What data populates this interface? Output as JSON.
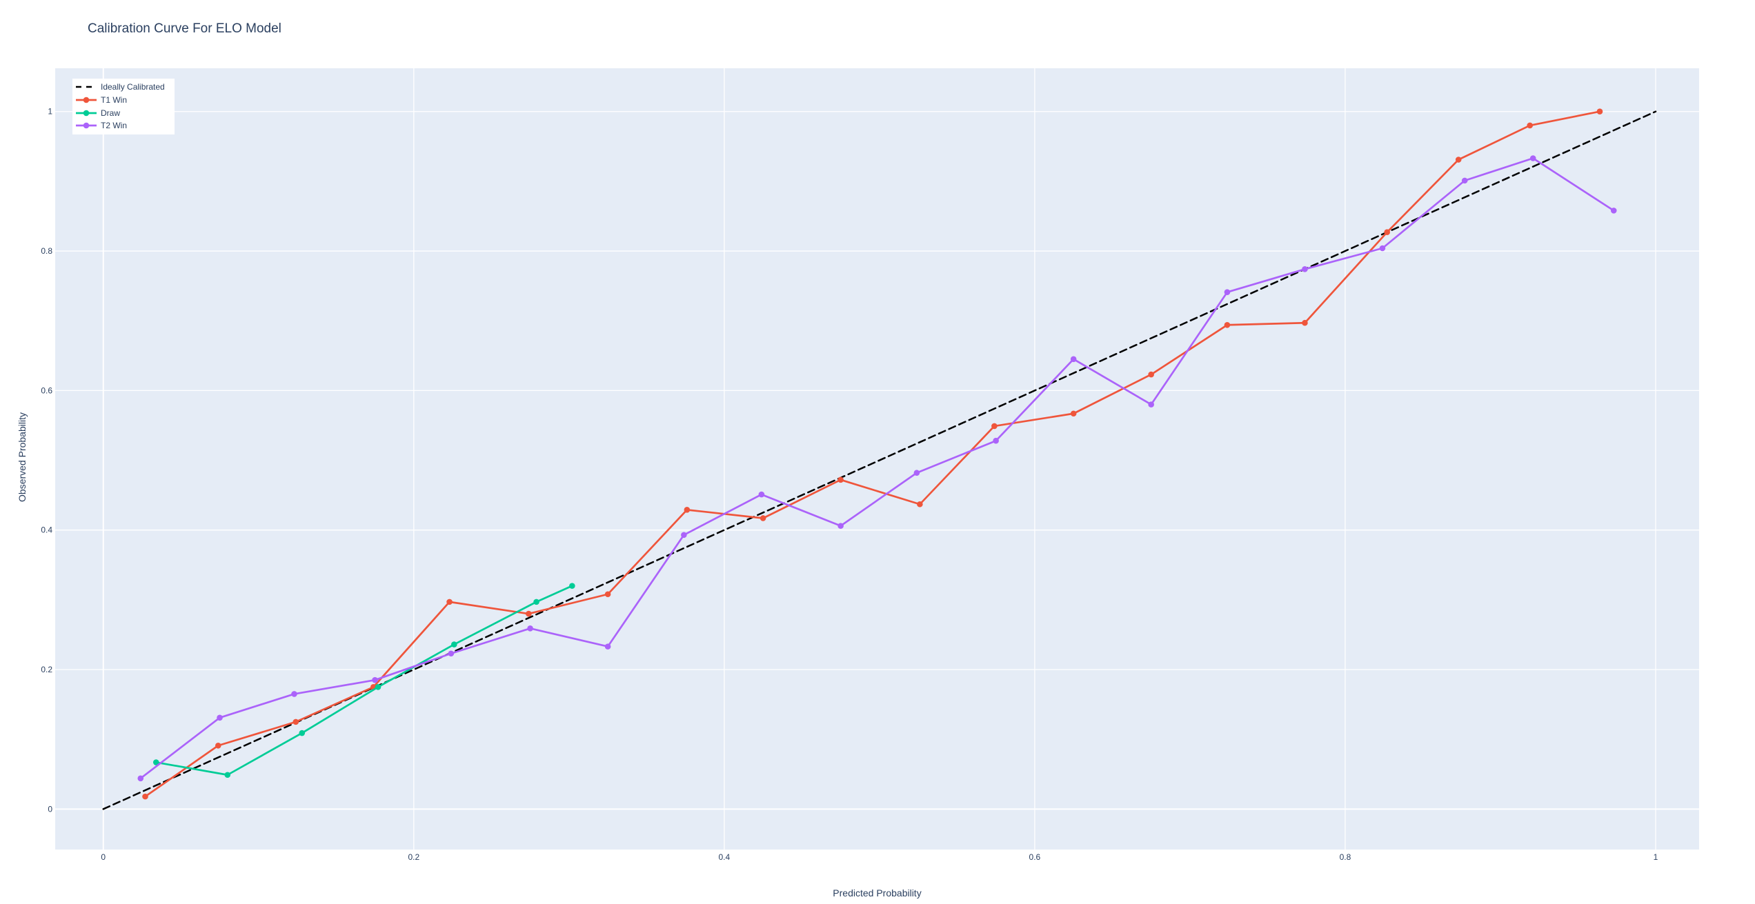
{
  "header": {
    "title": "Calibration Curve For ELO Model"
  },
  "chart_data": {
    "type": "line",
    "title": "Calibration Curve For ELO Model",
    "xlabel": "Predicted Probability",
    "ylabel": "Observed Probability",
    "xlim": [
      -0.031,
      1.028
    ],
    "ylim": [
      -0.058,
      1.062
    ],
    "grid": true,
    "legend_position": "top-left",
    "plot_bgcolor": "#E5ECF6",
    "paper_bgcolor": "#FFFFFF",
    "grid_color": "#FFFFFF",
    "font_color": "#2A3F5F",
    "x_tick_values": [
      0,
      0.2,
      0.4,
      0.6,
      0.8,
      1
    ],
    "x_tick_labels": [
      "0",
      "0.2",
      "0.4",
      "0.6",
      "0.8",
      "1"
    ],
    "y_tick_values": [
      0,
      0.2,
      0.4,
      0.6,
      0.8,
      1
    ],
    "y_tick_labels": [
      "0",
      "0.2",
      "0.4",
      "0.6",
      "0.8",
      "1"
    ],
    "series": [
      {
        "name": "Ideally Calibrated",
        "color": "#000000",
        "line_dash": "dash",
        "markers": false,
        "x": [
          0,
          1
        ],
        "y": [
          0,
          1
        ]
      },
      {
        "name": "T1 Win",
        "color": "#EF553B",
        "line_dash": "solid",
        "markers": true,
        "x": [
          0.027,
          0.074,
          0.124,
          0.174,
          0.223,
          0.274,
          0.325,
          0.376,
          0.425,
          0.475,
          0.526,
          0.574,
          0.625,
          0.675,
          0.724,
          0.774,
          0.827,
          0.873,
          0.919,
          0.964
        ],
        "y": [
          0.018,
          0.091,
          0.125,
          0.175,
          0.297,
          0.28,
          0.308,
          0.429,
          0.417,
          0.472,
          0.437,
          0.549,
          0.567,
          0.623,
          0.694,
          0.697,
          0.827,
          0.931,
          0.98,
          1.0
        ]
      },
      {
        "name": "Draw",
        "color": "#00CC96",
        "line_dash": "solid",
        "markers": true,
        "x": [
          0.034,
          0.08,
          0.128,
          0.177,
          0.226,
          0.279,
          0.302
        ],
        "y": [
          0.067,
          0.049,
          0.109,
          0.175,
          0.236,
          0.297,
          0.32
        ]
      },
      {
        "name": "T2 Win",
        "color": "#AB63FA",
        "line_dash": "solid",
        "markers": true,
        "x": [
          0.024,
          0.075,
          0.123,
          0.175,
          0.224,
          0.275,
          0.325,
          0.374,
          0.424,
          0.475,
          0.524,
          0.575,
          0.625,
          0.675,
          0.724,
          0.774,
          0.824,
          0.877,
          0.921,
          0.973
        ],
        "y": [
          0.044,
          0.131,
          0.165,
          0.185,
          0.223,
          0.259,
          0.233,
          0.393,
          0.451,
          0.406,
          0.482,
          0.528,
          0.645,
          0.58,
          0.741,
          0.774,
          0.804,
          0.901,
          0.933,
          0.858
        ]
      }
    ]
  }
}
